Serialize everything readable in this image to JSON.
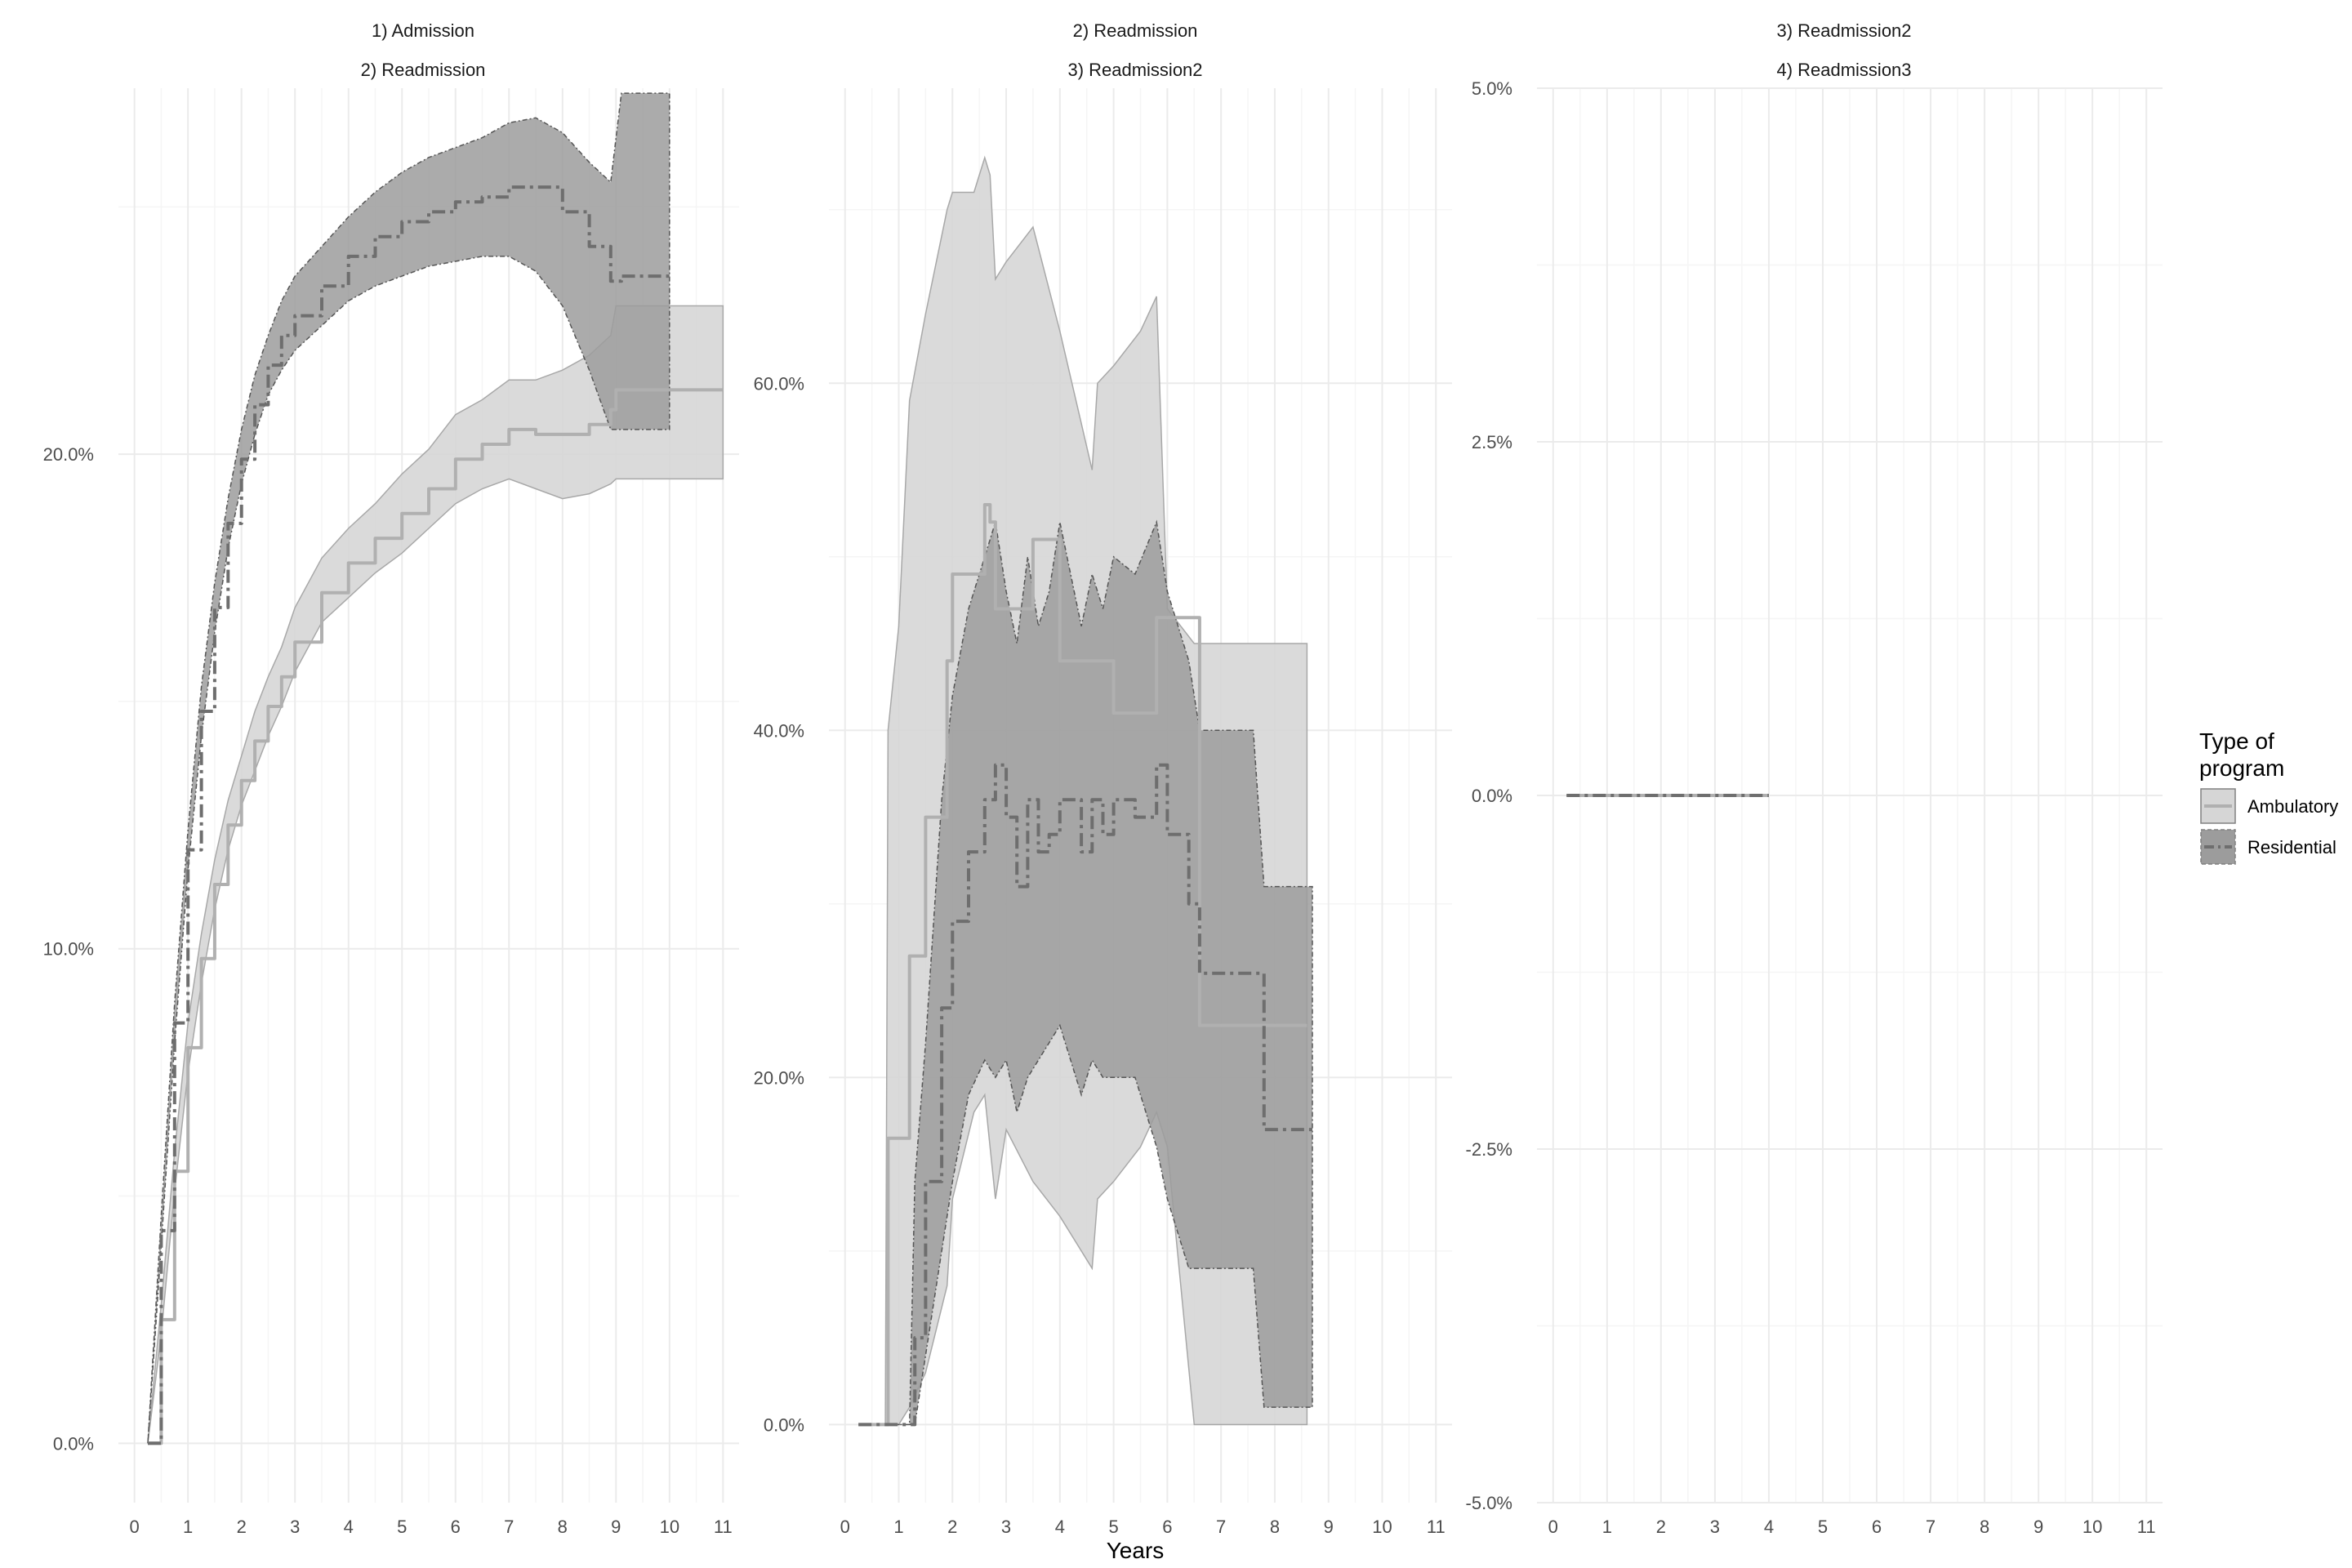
{
  "chart_data": [
    {
      "type": "line",
      "strip_labels": [
        "1) Admission",
        "2) Readmission"
      ],
      "x_ticks": [
        "0",
        "1",
        "2",
        "3",
        "4",
        "5",
        "6",
        "7",
        "8",
        "9",
        "10",
        "11"
      ],
      "y_ticks": [
        "0.0%",
        "10.0%",
        "20.0%"
      ],
      "y_tick_values": [
        0,
        10,
        20
      ],
      "xlim": [
        -0.3,
        11.3
      ],
      "ylim": [
        -1.2,
        27.4
      ],
      "series": [
        {
          "name": "Ambulatory",
          "x": [
            0.25,
            0.5,
            0.75,
            1.0,
            1.25,
            1.5,
            1.75,
            2.0,
            2.25,
            2.5,
            2.75,
            3.0,
            3.5,
            4.0,
            4.5,
            5.0,
            5.5,
            6.0,
            6.5,
            7.0,
            7.5,
            8.0,
            8.5,
            8.9,
            9.0,
            11.0
          ],
          "y": [
            0.0,
            2.5,
            5.5,
            8.0,
            9.8,
            11.3,
            12.5,
            13.4,
            14.2,
            14.9,
            15.5,
            16.2,
            17.2,
            17.8,
            18.3,
            18.8,
            19.3,
            19.9,
            20.2,
            20.5,
            20.4,
            20.4,
            20.6,
            20.9,
            21.3,
            21.3
          ],
          "lower": [
            0.0,
            2.2,
            5.1,
            7.5,
            9.3,
            10.8,
            12.0,
            12.9,
            13.6,
            14.3,
            14.9,
            15.6,
            16.6,
            17.1,
            17.6,
            18.0,
            18.5,
            19.0,
            19.3,
            19.5,
            19.3,
            19.1,
            19.2,
            19.4,
            19.5,
            19.5
          ],
          "upper": [
            0.0,
            2.8,
            5.9,
            8.5,
            10.3,
            11.8,
            13.0,
            13.9,
            14.8,
            15.5,
            16.1,
            16.9,
            17.9,
            18.5,
            19.0,
            19.6,
            20.1,
            20.8,
            21.1,
            21.5,
            21.5,
            21.7,
            22.0,
            22.4,
            23.0,
            23.0
          ]
        },
        {
          "name": "Residential",
          "x": [
            0.25,
            0.5,
            0.75,
            1.0,
            1.25,
            1.5,
            1.75,
            2.0,
            2.25,
            2.5,
            2.75,
            3.0,
            3.5,
            4.0,
            4.5,
            5.0,
            5.5,
            6.0,
            6.5,
            7.0,
            7.5,
            8.0,
            8.5,
            8.9,
            9.1,
            10.0
          ],
          "y": [
            0.0,
            4.3,
            8.5,
            12.0,
            14.8,
            16.9,
            18.6,
            19.9,
            21.0,
            21.8,
            22.4,
            22.8,
            23.4,
            24.0,
            24.4,
            24.7,
            24.9,
            25.1,
            25.2,
            25.4,
            25.4,
            24.9,
            24.2,
            23.5,
            23.6,
            23.6
          ],
          "lower": [
            0.0,
            4.0,
            8.1,
            11.6,
            14.3,
            16.4,
            18.1,
            19.4,
            20.4,
            21.2,
            21.7,
            22.1,
            22.6,
            23.1,
            23.4,
            23.6,
            23.8,
            23.9,
            24.0,
            24.0,
            23.7,
            23.0,
            21.7,
            20.5,
            20.5,
            20.5
          ],
          "upper": [
            0.0,
            4.6,
            8.9,
            12.4,
            15.3,
            17.4,
            19.1,
            20.5,
            21.6,
            22.4,
            23.1,
            23.6,
            24.2,
            24.8,
            25.3,
            25.7,
            26.0,
            26.2,
            26.4,
            26.7,
            26.8,
            26.5,
            25.9,
            25.5,
            27.3,
            27.3
          ]
        }
      ]
    },
    {
      "type": "line",
      "strip_labels": [
        "2) Readmission",
        "3) Readmission2"
      ],
      "x_ticks": [
        "0",
        "1",
        "2",
        "3",
        "4",
        "5",
        "6",
        "7",
        "8",
        "9",
        "10",
        "11"
      ],
      "y_ticks": [
        "0.0%",
        "20.0%",
        "40.0%",
        "60.0%"
      ],
      "y_tick_values": [
        0,
        20,
        40,
        60
      ],
      "xlim": [
        -0.3,
        11.3
      ],
      "ylim": [
        -4.5,
        77
      ],
      "series": [
        {
          "name": "Ambulatory",
          "x": [
            0.25,
            0.75,
            0.8,
            1.0,
            1.2,
            1.5,
            1.9,
            2.0,
            2.4,
            2.6,
            2.7,
            2.8,
            3.0,
            3.5,
            4.0,
            4.6,
            4.7,
            5.0,
            5.5,
            5.8,
            6.0,
            6.5,
            6.6,
            7.0,
            7.5,
            8.0,
            8.6
          ],
          "y": [
            0.0,
            0.0,
            16.5,
            16.5,
            27.0,
            35.0,
            44.0,
            49.0,
            49.0,
            53.0,
            52.0,
            47.0,
            47.0,
            51.0,
            44.0,
            44.0,
            44.0,
            41.0,
            41.0,
            46.5,
            46.5,
            46.5,
            23.0,
            23.0,
            23.0,
            23.0,
            23.0
          ],
          "lower": [
            0.0,
            0.0,
            0.0,
            0.0,
            1.0,
            3.0,
            8.0,
            13.0,
            18.0,
            19.0,
            16.0,
            13.0,
            17.0,
            14.0,
            12.0,
            9.0,
            13.0,
            14.0,
            16.0,
            18.0,
            16.0,
            0.0,
            0.0,
            0.0,
            0.0,
            0.0,
            0.0
          ],
          "upper": [
            0.0,
            0.0,
            40.0,
            46.0,
            59.0,
            64.0,
            70.0,
            71.0,
            71.0,
            73.0,
            72.0,
            66.0,
            67.0,
            69.0,
            63.0,
            55.0,
            60.0,
            61.0,
            63.0,
            65.0,
            47.0,
            45.0,
            45.0,
            45.0,
            45.0,
            45.0,
            45.0
          ]
        },
        {
          "name": "Residential",
          "x": [
            0.25,
            1.2,
            1.3,
            1.5,
            1.8,
            2.0,
            2.3,
            2.6,
            2.8,
            3.0,
            3.2,
            3.4,
            3.6,
            3.8,
            4.0,
            4.4,
            4.6,
            4.8,
            5.0,
            5.4,
            5.8,
            6.0,
            6.4,
            6.6,
            7.0,
            7.6,
            7.8,
            8.0,
            8.7
          ],
          "y": [
            0.0,
            0.0,
            5.0,
            14.0,
            24.0,
            29.0,
            33.0,
            36.0,
            38.0,
            35.0,
            31.0,
            36.0,
            33.0,
            34.0,
            36.0,
            33.0,
            36.0,
            34.0,
            36.0,
            35.0,
            38.0,
            34.0,
            30.0,
            26.0,
            26.0,
            26.0,
            17.0,
            17.0,
            17.0
          ],
          "lower": [
            0.0,
            0.0,
            0.0,
            4.0,
            10.0,
            14.0,
            19.0,
            21.0,
            20.0,
            21.0,
            18.0,
            20.0,
            21.0,
            22.0,
            23.0,
            19.0,
            21.0,
            20.0,
            20.0,
            20.0,
            16.0,
            13.0,
            9.0,
            9.0,
            9.0,
            9.0,
            1.0,
            1.0,
            1.0
          ],
          "upper": [
            0.0,
            0.0,
            14.0,
            22.0,
            36.0,
            42.0,
            47.0,
            50.0,
            52.0,
            48.0,
            45.0,
            50.0,
            46.0,
            48.0,
            52.0,
            46.0,
            49.0,
            47.0,
            50.0,
            49.0,
            52.0,
            48.0,
            44.0,
            40.0,
            40.0,
            40.0,
            31.0,
            31.0,
            31.0
          ]
        }
      ]
    },
    {
      "type": "line",
      "strip_labels": [
        "3) Readmission2",
        "4) Readmission3"
      ],
      "x_ticks": [
        "0",
        "1",
        "2",
        "3",
        "4",
        "5",
        "6",
        "7",
        "8",
        "9",
        "10",
        "11"
      ],
      "y_ticks": [
        "-5.0%",
        "-2.5%",
        "0.0%",
        "2.5%",
        "5.0%"
      ],
      "y_tick_values": [
        -5,
        -2.5,
        0,
        2.5,
        5
      ],
      "xlim": [
        -0.3,
        11.3
      ],
      "ylim": [
        -5,
        5
      ],
      "series": [
        {
          "name": "Ambulatory",
          "x": [
            0.25,
            4.0
          ],
          "y": [
            0.0,
            0.0
          ],
          "lower": [
            0.0,
            0.0
          ],
          "upper": [
            0.0,
            0.0
          ]
        },
        {
          "name": "Residential",
          "x": [
            0.25,
            4.0
          ],
          "y": [
            0.0,
            0.0
          ],
          "lower": [
            0.0,
            0.0
          ],
          "upper": [
            0.0,
            0.0
          ]
        }
      ]
    }
  ],
  "xlabel": "Years",
  "legend": {
    "title": "Type of program",
    "title_lines": [
      "Type of",
      "program"
    ],
    "position": "right",
    "entries": [
      {
        "label": "Ambulatory",
        "fill": "#d6d6d6",
        "line": "#b0b0b0",
        "dash": "solid"
      },
      {
        "label": "Residential",
        "fill": "#9c9c9c",
        "line": "#6e6e6e",
        "dash": "dashdot"
      }
    ]
  },
  "colors": {
    "ambulatory_fill": "#d6d6d6",
    "ambulatory_line": "#b0b0b0",
    "residential_fill": "#9c9c9c",
    "residential_line": "#6e6e6e",
    "grid_major": "#ebebeb",
    "grid_minor": "#f5f5f5"
  }
}
